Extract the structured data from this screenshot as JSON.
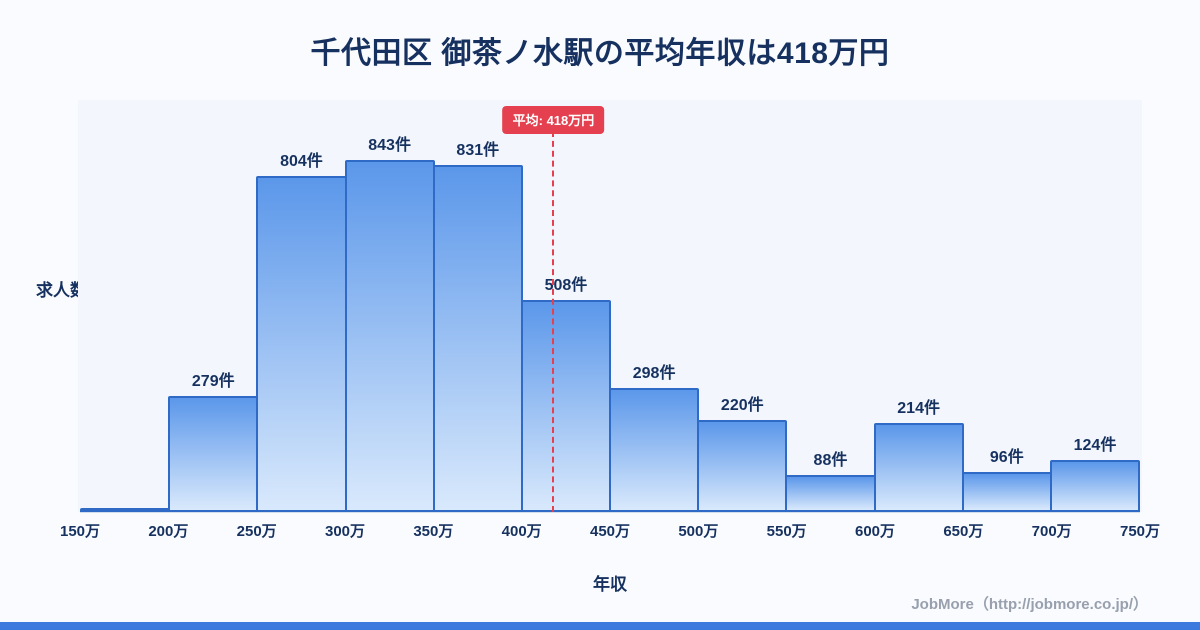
{
  "title": "千代田区 御茶ノ水駅の平均年収は418万円",
  "axis": {
    "ylabel": "求人数",
    "xlabel": "年収"
  },
  "average_badge": "平均: 418万円",
  "footer": "JobMore（http://jobmore.co.jp/）",
  "colors": {
    "navy": "#16315f",
    "bar-border": "#2e6ac6",
    "bar-top": "#5b97ea",
    "bar-bottom": "#d9e9fc",
    "accent-red": "#e5404f",
    "page-bg": "#f9fbfe",
    "plot-bg": "#f3f7fd",
    "footer-gray": "#98a0ae",
    "bottom-strip": "#3e79dd"
  },
  "chart_data": {
    "type": "bar",
    "title": "千代田区 御茶ノ水駅の平均年収は418万円",
    "xlabel": "年収",
    "ylabel": "求人数",
    "bin_edges": [
      "150万",
      "200万",
      "250万",
      "300万",
      "350万",
      "400万",
      "450万",
      "500万",
      "550万",
      "600万",
      "650万",
      "700万",
      "750万"
    ],
    "values": [
      8,
      279,
      804,
      843,
      831,
      508,
      298,
      220,
      88,
      214,
      96,
      124
    ],
    "labels": [
      "",
      "279件",
      "804件",
      "843件",
      "831件",
      "508件",
      "298件",
      "220件",
      "88件",
      "214件",
      "96件",
      "124件"
    ],
    "value_unit": "件",
    "average": 418,
    "x_range": [
      150,
      750
    ],
    "ylim": [
      0,
      880
    ],
    "grid": false,
    "legend": "none",
    "average_line_style": "dashed-red"
  }
}
